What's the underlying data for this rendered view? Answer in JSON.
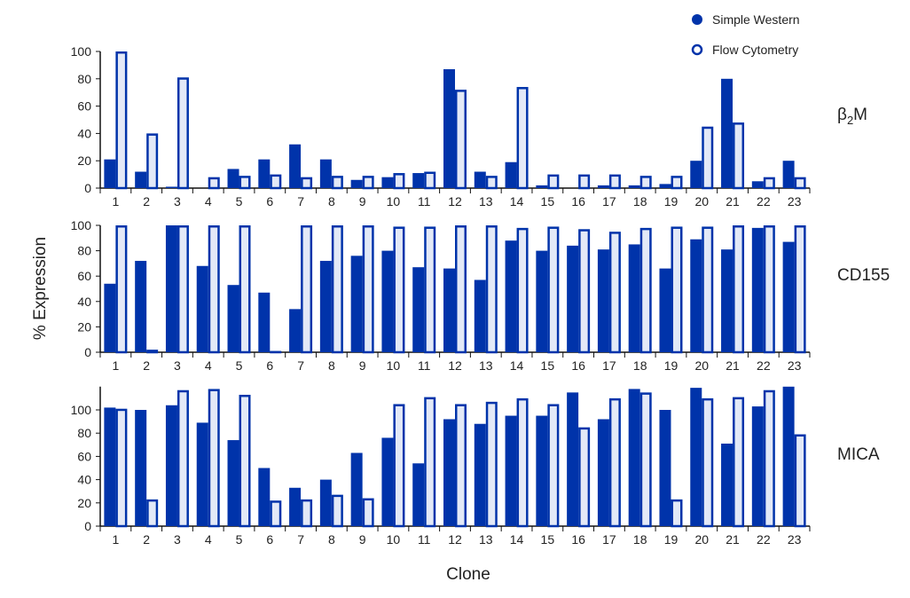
{
  "colors": {
    "simple_western": "#0033aa",
    "flow_fill": "#e3e9f7",
    "flow_stroke": "#0033aa",
    "axis": "#111111"
  },
  "chart_data": {
    "type": "bar",
    "ylabel": "% Expression",
    "xlabel": "Clone",
    "legend": {
      "placement": "top-right",
      "entries": [
        "Simple Western",
        "Flow Cytometry"
      ]
    },
    "categories": [
      "1",
      "2",
      "3",
      "4",
      "5",
      "6",
      "7",
      "8",
      "9",
      "10",
      "11",
      "12",
      "13",
      "14",
      "15",
      "16",
      "17",
      "18",
      "19",
      "20",
      "21",
      "22",
      "23"
    ],
    "panels": [
      {
        "label_main": "β",
        "label_sub": "2",
        "label_tail": "M",
        "yticks": [
          0,
          20,
          40,
          60,
          80,
          100
        ],
        "ylim": [
          0,
          100
        ],
        "series": [
          {
            "name": "Simple Western",
            "values": [
              21,
              12,
              1,
              0,
              14,
              21,
              32,
              21,
              6,
              8,
              11,
              87,
              12,
              19,
              2,
              0,
              2,
              2,
              3,
              20,
              80,
              5,
              20
            ]
          },
          {
            "name": "Flow Cytometry",
            "values": [
              100,
              40,
              81,
              8,
              9,
              10,
              8,
              9,
              9,
              11,
              12,
              72,
              9,
              74,
              10,
              10,
              10,
              9,
              9,
              45,
              48,
              8,
              8
            ]
          }
        ]
      },
      {
        "label_main": "CD155",
        "label_sub": "",
        "label_tail": "",
        "yticks": [
          0,
          20,
          40,
          60,
          80,
          100
        ],
        "ylim": [
          0,
          100
        ],
        "series": [
          {
            "name": "Simple Western",
            "values": [
              54,
              72,
              100,
              68,
              53,
              47,
              34,
              72,
              76,
              80,
              67,
              66,
              57,
              88,
              80,
              84,
              81,
              85,
              66,
              89,
              81,
              98,
              87
            ]
          },
          {
            "name": "Flow Cytometry",
            "values": [
              100,
              2,
              100,
              100,
              100,
              1,
              100,
              100,
              100,
              99,
              99,
              100,
              100,
              98,
              99,
              97,
              95,
              98,
              99,
              99,
              100,
              100,
              100
            ]
          }
        ]
      },
      {
        "label_main": "MICA",
        "label_sub": "",
        "label_tail": "",
        "yticks": [
          0,
          20,
          40,
          60,
          80,
          100
        ],
        "ylim": [
          0,
          120
        ],
        "series": [
          {
            "name": "Simple Western",
            "values": [
              102,
              100,
              104,
              89,
              74,
              50,
              33,
              40,
              63,
              76,
              54,
              92,
              88,
              95,
              95,
              115,
              92,
              118,
              100,
              119,
              71,
              103,
              120
            ]
          },
          {
            "name": "Flow Cytometry",
            "values": [
              101,
              23,
              117,
              118,
              113,
              22,
              23,
              27,
              24,
              105,
              111,
              105,
              107,
              110,
              105,
              85,
              110,
              115,
              23,
              110,
              111,
              117,
              79
            ]
          }
        ]
      }
    ]
  }
}
